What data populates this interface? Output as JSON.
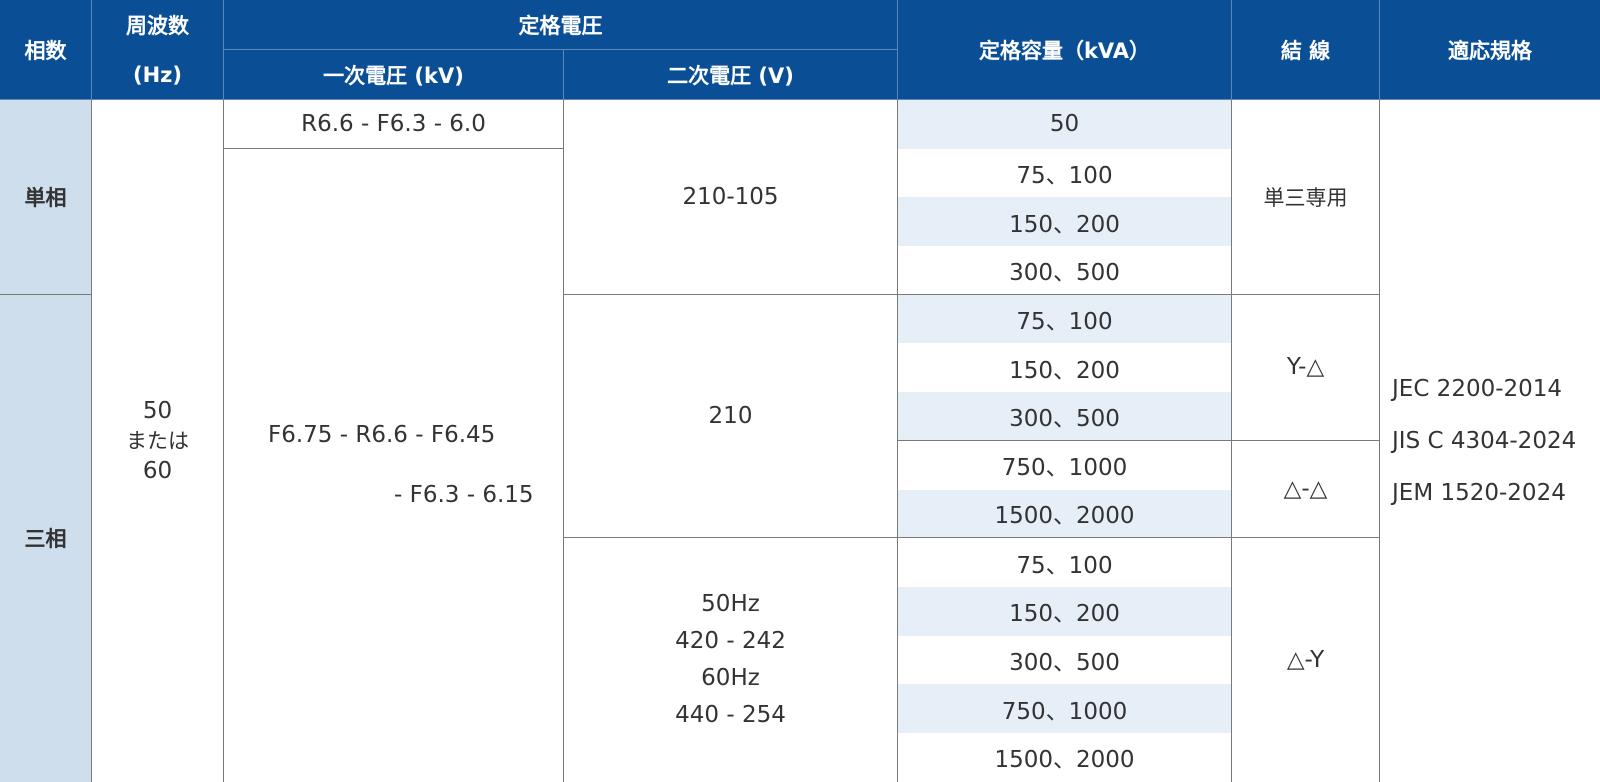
{
  "header": {
    "phase": "相数",
    "frequency": "周波数",
    "frequency_unit": "(Hz)",
    "rated_voltage": "定格電圧",
    "primary_voltage": "一次電圧 (kV)",
    "secondary_voltage": "二次電圧 (V)",
    "rated_capacity": "定格容量（kVA）",
    "connection": "結 線",
    "standards": "適応規格"
  },
  "rows": {
    "phase_single": "単相",
    "phase_three": "三相",
    "frequency_lines": [
      "50",
      "または",
      "60"
    ],
    "primary_single": "R6.6 - F6.3 - 6.0",
    "primary_three_lines": [
      "F6.75 - R6.6 - F6.45",
      "- F6.3 - 6.15"
    ],
    "secondary_single": "210-105",
    "secondary_three_a": "210",
    "secondary_three_b_lines": [
      "50Hz",
      "420 - 242",
      "60Hz",
      "440 - 254"
    ],
    "capacities": [
      "50",
      "75、100",
      "150、200",
      "300、500",
      "75、100",
      "150、200",
      "300、500",
      "750、1000",
      "1500、2000",
      "75、100",
      "150、200",
      "300、500",
      "750、1000",
      "1500、2000"
    ],
    "connection_single": "単三専用",
    "connection_yd": "Y-△",
    "connection_dd": "△-△",
    "connection_dy": "△-Y",
    "standards_lines": [
      "JEC 2200-2014",
      "JIS C 4304-2024",
      "JEM 1520-2024"
    ]
  }
}
